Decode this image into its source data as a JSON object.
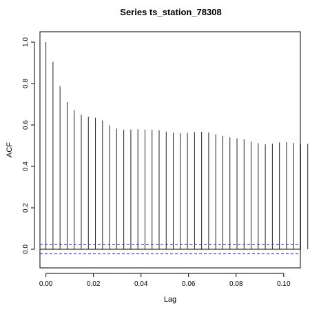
{
  "chart_data": {
    "type": "bar",
    "title": "Series  ts_station_78308",
    "xlabel": "Lag",
    "ylabel": "ACF",
    "xlim": [
      -0.0025,
      0.107
    ],
    "ylim": [
      -0.09,
      1.05
    ],
    "x_ticks": [
      0.0,
      0.02,
      0.04,
      0.06,
      0.08,
      0.1
    ],
    "x_tick_labels": [
      "0.00",
      "0.02",
      "0.04",
      "0.06",
      "0.08",
      "0.10"
    ],
    "y_ticks": [
      0.0,
      0.2,
      0.4,
      0.6,
      0.8,
      1.0
    ],
    "y_tick_labels": [
      "0.0",
      "0.2",
      "0.4",
      "0.6",
      "0.8",
      "1.0"
    ],
    "lag_step": 0.002976,
    "acf": [
      1.0,
      0.905,
      0.787,
      0.71,
      0.672,
      0.65,
      0.64,
      0.635,
      0.622,
      0.598,
      0.582,
      0.577,
      0.578,
      0.579,
      0.578,
      0.577,
      0.575,
      0.568,
      0.563,
      0.561,
      0.562,
      0.566,
      0.567,
      0.564,
      0.555,
      0.547,
      0.54,
      0.535,
      0.53,
      0.52,
      0.512,
      0.508,
      0.51,
      0.516,
      0.518,
      0.513,
      0.508,
      0.509,
      0.514,
      0.515
    ],
    "confidence_bound": 0.022,
    "colors": {
      "bars": "#222222",
      "confidence": "#3333cc",
      "zero": "#000000"
    }
  }
}
